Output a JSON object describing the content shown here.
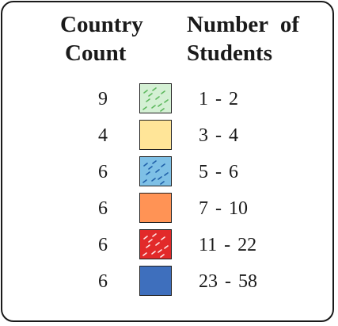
{
  "legend": {
    "header_count": [
      "Country",
      "Count"
    ],
    "header_students": [
      "Number of",
      "Students"
    ]
  },
  "chart_data": {
    "type": "table",
    "columns": [
      "Country Count",
      "Number of Students"
    ],
    "rows": [
      {
        "count": "9",
        "range": "1 - 2",
        "color": "#d4f0d4",
        "pattern": "dash-green"
      },
      {
        "count": "4",
        "range": "3 - 4",
        "color": "#ffe598",
        "pattern": "none"
      },
      {
        "count": "6",
        "range": "5 - 6",
        "color": "#7ec0e6",
        "pattern": "dash-blue"
      },
      {
        "count": "6",
        "range": "7 - 10",
        "color": "#ff9355",
        "pattern": "none"
      },
      {
        "count": "6",
        "range": "11 - 22",
        "color": "#e22a2a",
        "pattern": "dash-white"
      },
      {
        "count": "6",
        "range": "23 - 58",
        "color": "#3e6fbd",
        "pattern": "none"
      }
    ]
  }
}
